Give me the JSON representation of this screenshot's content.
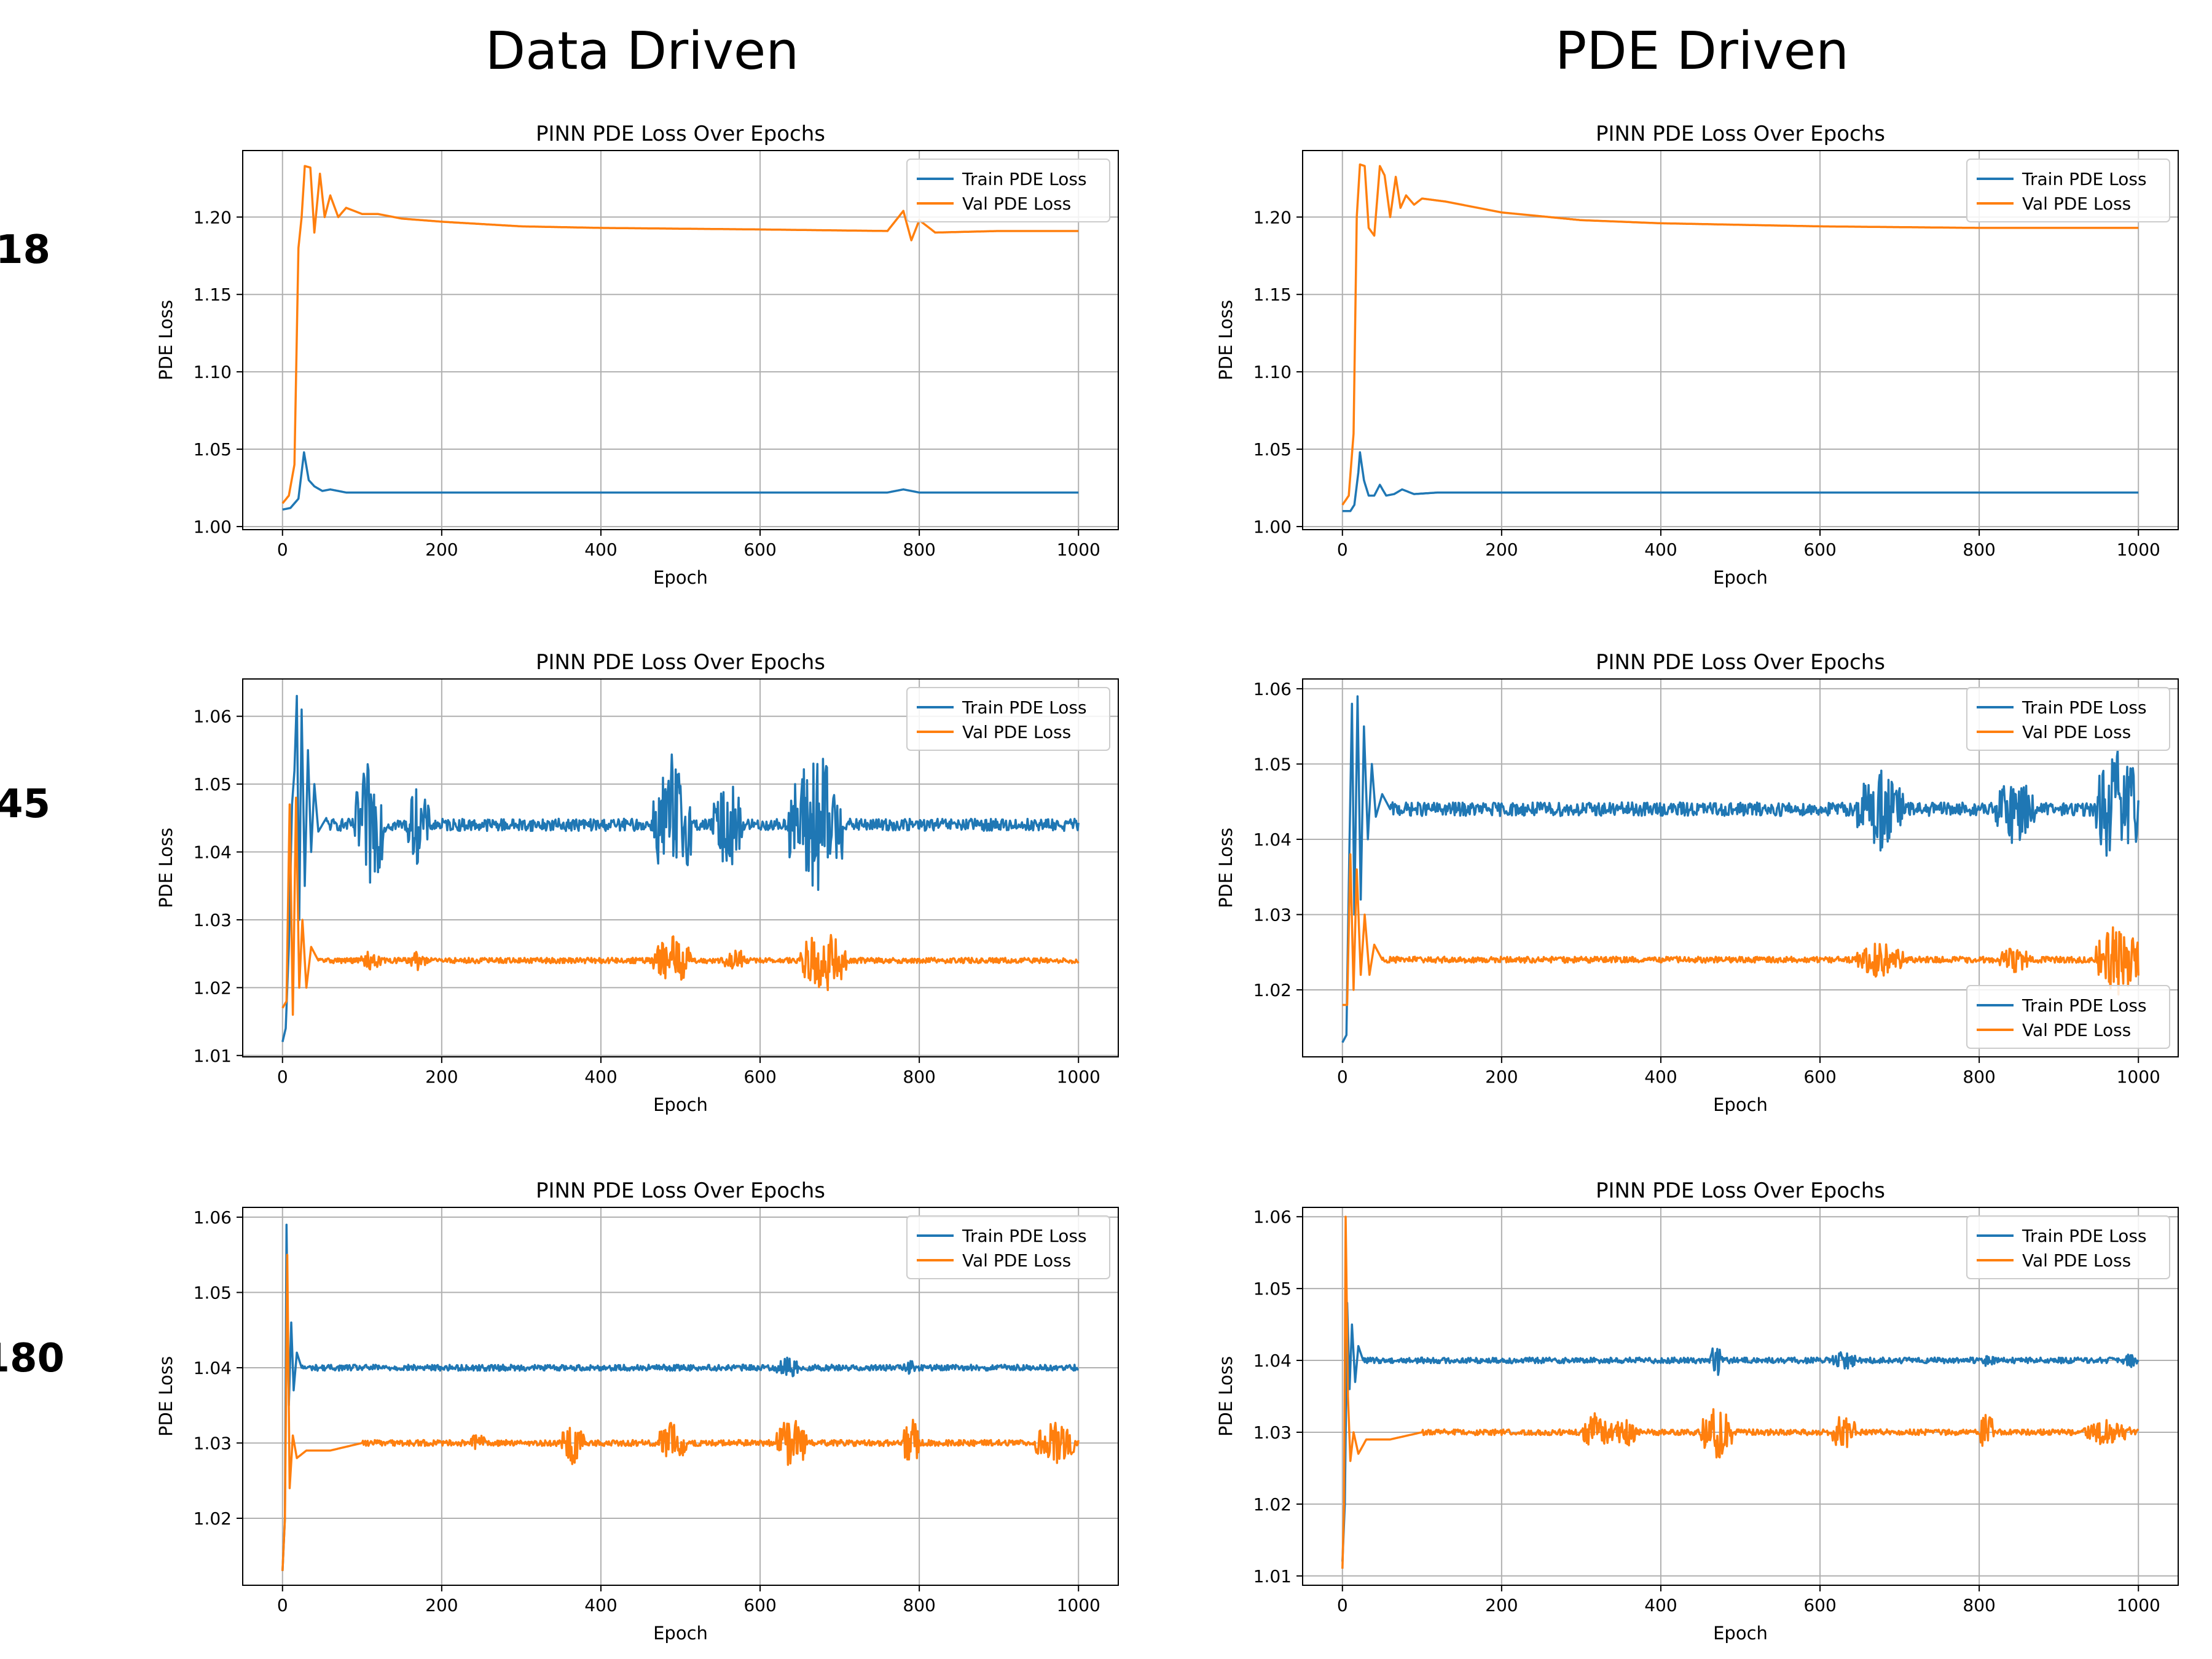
{
  "figure": {
    "column_titles": [
      "Data Driven",
      "PDE Driven"
    ],
    "row_labels": [
      "18",
      "45",
      "180"
    ]
  },
  "colors": {
    "train": "#1f77b4",
    "val": "#ff7f0e",
    "grid": "#b0b0b0"
  },
  "chart_data": [
    {
      "type": "line",
      "title": "PINN PDE Loss Over Epochs",
      "xlabel": "Epoch",
      "ylabel": "PDE Loss",
      "xlim": [
        -50,
        1050
      ],
      "ylim": [
        0.998,
        1.243
      ],
      "xticks": [
        0,
        200,
        400,
        600,
        800,
        1000
      ],
      "yticks": [
        1.0,
        1.05,
        1.1,
        1.15,
        1.2
      ],
      "ytick_labels": [
        "1.00",
        "1.05",
        "1.10",
        "1.15",
        "1.20"
      ],
      "grid": true,
      "legend": "upper right",
      "series": [
        {
          "name": "Train PDE Loss",
          "color": "#1f77b4",
          "points": [
            [
              0,
              1.011
            ],
            [
              10,
              1.012
            ],
            [
              20,
              1.018
            ],
            [
              27,
              1.048
            ],
            [
              33,
              1.03
            ],
            [
              40,
              1.026
            ],
            [
              50,
              1.023
            ],
            [
              60,
              1.024
            ],
            [
              80,
              1.022
            ],
            [
              120,
              1.022
            ],
            [
              400,
              1.022
            ],
            [
              760,
              1.022
            ],
            [
              780,
              1.024
            ],
            [
              800,
              1.022
            ],
            [
              1000,
              1.022
            ]
          ]
        },
        {
          "name": "Val PDE Loss",
          "color": "#ff7f0e",
          "points": [
            [
              0,
              1.015
            ],
            [
              8,
              1.02
            ],
            [
              15,
              1.04
            ],
            [
              20,
              1.18
            ],
            [
              24,
              1.2
            ],
            [
              28,
              1.233
            ],
            [
              35,
              1.232
            ],
            [
              40,
              1.19
            ],
            [
              47,
              1.228
            ],
            [
              53,
              1.2
            ],
            [
              60,
              1.214
            ],
            [
              70,
              1.2
            ],
            [
              80,
              1.206
            ],
            [
              100,
              1.202
            ],
            [
              120,
              1.202
            ],
            [
              150,
              1.199
            ],
            [
              200,
              1.197
            ],
            [
              300,
              1.194
            ],
            [
              400,
              1.193
            ],
            [
              600,
              1.192
            ],
            [
              760,
              1.191
            ],
            [
              780,
              1.204
            ],
            [
              790,
              1.185
            ],
            [
              800,
              1.198
            ],
            [
              820,
              1.19
            ],
            [
              900,
              1.191
            ],
            [
              1000,
              1.191
            ]
          ]
        }
      ]
    },
    {
      "type": "line",
      "title": "PINN PDE Loss Over Epochs",
      "xlabel": "Epoch",
      "ylabel": "PDE Loss",
      "xlim": [
        -50,
        1050
      ],
      "ylim": [
        0.998,
        1.243
      ],
      "xticks": [
        0,
        200,
        400,
        600,
        800,
        1000
      ],
      "yticks": [
        1.0,
        1.05,
        1.1,
        1.15,
        1.2
      ],
      "ytick_labels": [
        "1.00",
        "1.05",
        "1.10",
        "1.15",
        "1.20"
      ],
      "grid": true,
      "legend": "upper right",
      "series": [
        {
          "name": "Train PDE Loss",
          "color": "#1f77b4",
          "points": [
            [
              0,
              1.01
            ],
            [
              10,
              1.01
            ],
            [
              15,
              1.014
            ],
            [
              20,
              1.035
            ],
            [
              22,
              1.048
            ],
            [
              27,
              1.03
            ],
            [
              33,
              1.02
            ],
            [
              40,
              1.02
            ],
            [
              47,
              1.027
            ],
            [
              55,
              1.02
            ],
            [
              65,
              1.021
            ],
            [
              75,
              1.024
            ],
            [
              90,
              1.021
            ],
            [
              120,
              1.022
            ],
            [
              400,
              1.022
            ],
            [
              1000,
              1.022
            ]
          ]
        },
        {
          "name": "Val PDE Loss",
          "color": "#ff7f0e",
          "points": [
            [
              0,
              1.014
            ],
            [
              8,
              1.02
            ],
            [
              14,
              1.06
            ],
            [
              18,
              1.2
            ],
            [
              22,
              1.234
            ],
            [
              28,
              1.233
            ],
            [
              33,
              1.193
            ],
            [
              40,
              1.188
            ],
            [
              47,
              1.233
            ],
            [
              53,
              1.227
            ],
            [
              60,
              1.2
            ],
            [
              67,
              1.226
            ],
            [
              73,
              1.206
            ],
            [
              80,
              1.214
            ],
            [
              90,
              1.208
            ],
            [
              100,
              1.212
            ],
            [
              130,
              1.21
            ],
            [
              200,
              1.203
            ],
            [
              300,
              1.198
            ],
            [
              400,
              1.196
            ],
            [
              600,
              1.194
            ],
            [
              800,
              1.193
            ],
            [
              1000,
              1.193
            ]
          ]
        }
      ]
    },
    {
      "type": "line",
      "title": "PINN PDE Loss Over Epochs",
      "xlabel": "Epoch",
      "ylabel": "PDE Loss",
      "xlim": [
        -50,
        1050
      ],
      "ylim": [
        1.0098,
        1.0655
      ],
      "xticks": [
        0,
        200,
        400,
        600,
        800,
        1000
      ],
      "yticks": [
        1.01,
        1.02,
        1.03,
        1.04,
        1.05,
        1.06
      ],
      "ytick_labels": [
        "1.01",
        "1.02",
        "1.03",
        "1.04",
        "1.05",
        "1.06"
      ],
      "grid": true,
      "legend": "upper right",
      "series": [
        {
          "name": "Train PDE Loss",
          "color": "#1f77b4",
          "base": 1.044,
          "noise": 0.0009,
          "onset": [
            [
              0,
              1.012
            ],
            [
              4,
              1.014
            ],
            [
              8,
              1.026
            ],
            [
              12,
              1.047
            ],
            [
              15,
              1.052
            ],
            [
              18,
              1.063
            ],
            [
              21,
              1.03
            ],
            [
              24,
              1.061
            ],
            [
              28,
              1.035
            ],
            [
              32,
              1.055
            ],
            [
              36,
              1.04
            ],
            [
              40,
              1.05
            ],
            [
              45,
              1.043
            ],
            [
              55,
              1.045
            ]
          ],
          "bursts": [
            [
              110,
              20,
              0.01
            ],
            [
              170,
              15,
              0.006
            ],
            [
              490,
              25,
              0.011
            ],
            [
              560,
              20,
              0.007
            ],
            [
              670,
              35,
              0.012
            ]
          ]
        },
        {
          "name": "Val PDE Loss",
          "color": "#ff7f0e",
          "base": 1.024,
          "noise": 0.0004,
          "onset": [
            [
              0,
              1.017
            ],
            [
              5,
              1.018
            ],
            [
              9,
              1.047
            ],
            [
              13,
              1.016
            ],
            [
              17,
              1.048
            ],
            [
              21,
              1.02
            ],
            [
              25,
              1.03
            ],
            [
              30,
              1.02
            ],
            [
              36,
              1.026
            ],
            [
              45,
              1.024
            ]
          ],
          "bursts": [
            [
              110,
              15,
              0.0015
            ],
            [
              170,
              10,
              0.0015
            ],
            [
              490,
              25,
              0.004
            ],
            [
              570,
              15,
              0.002
            ],
            [
              680,
              30,
              0.005
            ]
          ]
        }
      ]
    },
    {
      "type": "line",
      "title": "PINN PDE Loss Over Epochs",
      "xlabel": "Epoch",
      "ylabel": "PDE Loss",
      "xlim": [
        -50,
        1050
      ],
      "ylim": [
        1.0111,
        1.0613
      ],
      "xticks": [
        0,
        200,
        400,
        600,
        800,
        1000
      ],
      "yticks": [
        1.02,
        1.03,
        1.04,
        1.05,
        1.06
      ],
      "ytick_labels": [
        "1.02",
        "1.03",
        "1.04",
        "1.05",
        "1.06"
      ],
      "grid": true,
      "legend": "upper right; lower right",
      "series": [
        {
          "name": "Train PDE Loss",
          "color": "#1f77b4",
          "base": 1.044,
          "noise": 0.0009,
          "onset": [
            [
              0,
              1.013
            ],
            [
              5,
              1.014
            ],
            [
              9,
              1.04
            ],
            [
              12,
              1.058
            ],
            [
              15,
              1.03
            ],
            [
              19,
              1.059
            ],
            [
              23,
              1.032
            ],
            [
              27,
              1.055
            ],
            [
              32,
              1.04
            ],
            [
              37,
              1.05
            ],
            [
              42,
              1.043
            ],
            [
              50,
              1.046
            ],
            [
              60,
              1.044
            ]
          ],
          "bursts": [
            [
              675,
              30,
              0.006
            ],
            [
              845,
              25,
              0.005
            ],
            [
              975,
              30,
              0.009
            ]
          ]
        },
        {
          "name": "Val PDE Loss",
          "color": "#ff7f0e",
          "base": 1.024,
          "noise": 0.0004,
          "onset": [
            [
              0,
              1.018
            ],
            [
              6,
              1.018
            ],
            [
              10,
              1.038
            ],
            [
              14,
              1.02
            ],
            [
              18,
              1.036
            ],
            [
              23,
              1.022
            ],
            [
              28,
              1.03
            ],
            [
              34,
              1.022
            ],
            [
              40,
              1.026
            ],
            [
              50,
              1.024
            ]
          ],
          "bursts": [
            [
              675,
              30,
              0.0025
            ],
            [
              845,
              20,
              0.002
            ],
            [
              975,
              30,
              0.005
            ]
          ]
        }
      ]
    },
    {
      "type": "line",
      "title": "PINN PDE Loss Over Epochs",
      "xlabel": "Epoch",
      "ylabel": "PDE Loss",
      "xlim": [
        -50,
        1050
      ],
      "ylim": [
        1.0111,
        1.0613
      ],
      "xticks": [
        0,
        200,
        400,
        600,
        800,
        1000
      ],
      "yticks": [
        1.02,
        1.03,
        1.04,
        1.05,
        1.06
      ],
      "ytick_labels": [
        "1.02",
        "1.03",
        "1.04",
        "1.05",
        "1.06"
      ],
      "grid": true,
      "legend": "upper right",
      "series": [
        {
          "name": "Train PDE Loss",
          "color": "#1f77b4",
          "base": 1.04,
          "noise": 0.0004,
          "onset": [
            [
              0,
              1.013
            ],
            [
              3,
              1.02
            ],
            [
              5,
              1.059
            ],
            [
              8,
              1.035
            ],
            [
              11,
              1.046
            ],
            [
              14,
              1.037
            ],
            [
              18,
              1.042
            ],
            [
              24,
              1.04
            ]
          ],
          "bursts": [
            [
              635,
              15,
              0.0015
            ],
            [
              790,
              10,
              0.001
            ]
          ]
        },
        {
          "name": "Val PDE Loss",
          "color": "#ff7f0e",
          "base": 1.03,
          "noise": 0.0004,
          "onset": [
            [
              0,
              1.013
            ],
            [
              3,
              1.02
            ],
            [
              6,
              1.055
            ],
            [
              9,
              1.024
            ],
            [
              13,
              1.031
            ],
            [
              18,
              1.028
            ],
            [
              30,
              1.029
            ],
            [
              60,
              1.029
            ],
            [
              100,
              1.03
            ]
          ],
          "bursts": [
            [
              245,
              10,
              0.0015
            ],
            [
              365,
              15,
              0.003
            ],
            [
              490,
              20,
              0.003
            ],
            [
              640,
              20,
              0.004
            ],
            [
              790,
              10,
              0.004
            ],
            [
              970,
              25,
              0.003
            ]
          ]
        }
      ]
    },
    {
      "type": "line",
      "title": "PINN PDE Loss Over Epochs",
      "xlabel": "Epoch",
      "ylabel": "PDE Loss",
      "xlim": [
        -50,
        1050
      ],
      "ylim": [
        1.0087,
        1.0613
      ],
      "xticks": [
        0,
        200,
        400,
        600,
        800,
        1000
      ],
      "yticks": [
        1.01,
        1.02,
        1.03,
        1.04,
        1.05,
        1.06
      ],
      "ytick_labels": [
        "1.01",
        "1.02",
        "1.03",
        "1.04",
        "1.05",
        "1.06"
      ],
      "grid": true,
      "legend": "upper right",
      "series": [
        {
          "name": "Train PDE Loss",
          "color": "#1f77b4",
          "base": 1.04,
          "noise": 0.0004,
          "onset": [
            [
              0,
              1.012
            ],
            [
              3,
              1.02
            ],
            [
              6,
              1.048
            ],
            [
              9,
              1.036
            ],
            [
              12,
              1.045
            ],
            [
              16,
              1.037
            ],
            [
              20,
              1.042
            ],
            [
              26,
              1.04
            ]
          ],
          "bursts": [
            [
              470,
              8,
              0.003
            ],
            [
              630,
              15,
              0.0015
            ],
            [
              810,
              10,
              0.001
            ],
            [
              990,
              10,
              0.001
            ]
          ]
        },
        {
          "name": "Val PDE Loss",
          "color": "#ff7f0e",
          "base": 1.03,
          "noise": 0.0004,
          "onset": [
            [
              0,
              1.011
            ],
            [
              2,
              1.02
            ],
            [
              4,
              1.06
            ],
            [
              7,
              1.035
            ],
            [
              10,
              1.026
            ],
            [
              14,
              1.03
            ],
            [
              20,
              1.027
            ],
            [
              30,
              1.029
            ],
            [
              60,
              1.029
            ],
            [
              100,
              1.03
            ]
          ],
          "bursts": [
            [
              320,
              20,
              0.003
            ],
            [
              355,
              15,
              0.0025
            ],
            [
              470,
              20,
              0.004
            ],
            [
              630,
              15,
              0.003
            ],
            [
              810,
              10,
              0.003
            ],
            [
              960,
              30,
              0.002
            ]
          ]
        }
      ]
    }
  ]
}
